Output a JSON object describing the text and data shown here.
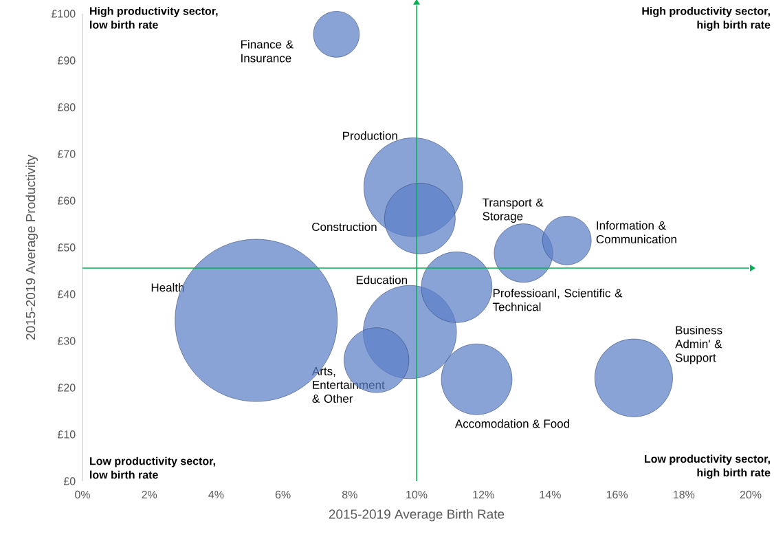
{
  "chart_data": {
    "type": "bubble",
    "xlabel": "2015-2019 Average Birth Rate",
    "ylabel": "2015-2019 Average  Productivity",
    "xlim": [
      0,
      20
    ],
    "ylim": [
      0,
      100
    ],
    "xticks": [
      {
        "value": 0,
        "label": "0%"
      },
      {
        "value": 2,
        "label": "2%"
      },
      {
        "value": 4,
        "label": "4%"
      },
      {
        "value": 6,
        "label": "6%"
      },
      {
        "value": 8,
        "label": "8%"
      },
      {
        "value": 10,
        "label": "10%"
      },
      {
        "value": 12,
        "label": "12%"
      },
      {
        "value": 14,
        "label": "14%"
      },
      {
        "value": 16,
        "label": "16%"
      },
      {
        "value": 18,
        "label": "18%"
      },
      {
        "value": 20,
        "label": "20%"
      }
    ],
    "yticks": [
      {
        "value": 0,
        "label": "£0"
      },
      {
        "value": 10,
        "label": "£10"
      },
      {
        "value": 20,
        "label": "£20"
      },
      {
        "value": 30,
        "label": "£30"
      },
      {
        "value": 40,
        "label": "£40"
      },
      {
        "value": 50,
        "label": "£50"
      },
      {
        "value": 60,
        "label": "£60"
      },
      {
        "value": 70,
        "label": "£70"
      },
      {
        "value": 80,
        "label": "£80"
      },
      {
        "value": 90,
        "label": "£90"
      },
      {
        "value": 100,
        "label": "£100"
      }
    ],
    "series": [
      {
        "name": "Finance & Insurance",
        "color": "#5b7fc7",
        "x": [
          7.6
        ],
        "values": [
          95.6
        ],
        "sizes": [
          0.08
        ]
      },
      {
        "name": "Production",
        "color": "#5b7fc7",
        "x": [
          9.9
        ],
        "values": [
          62.9
        ],
        "sizes": [
          0.37
        ]
      },
      {
        "name": "Construction",
        "color": "#5b7fc7",
        "x": [
          10.1
        ],
        "values": [
          56.2
        ],
        "sizes": [
          0.19
        ]
      },
      {
        "name": "Transport & Storage",
        "color": "#5b7fc7",
        "x": [
          13.2
        ],
        "values": [
          48.8
        ],
        "sizes": [
          0.13
        ]
      },
      {
        "name": "Information & Communication",
        "color": "#5b7fc7",
        "x": [
          14.5
        ],
        "values": [
          51.5
        ],
        "sizes": [
          0.09
        ]
      },
      {
        "name": "Health",
        "color": "#5b7fc7",
        "x": [
          5.2
        ],
        "values": [
          34.4
        ],
        "sizes": [
          1
        ]
      },
      {
        "name": "Education",
        "color": "#5b7fc7",
        "x": [
          9.8
        ],
        "values": [
          31.9
        ],
        "sizes": [
          0.33
        ]
      },
      {
        "name": "Professioanl, Scientific & Technical",
        "color": "#5b7fc7",
        "x": [
          11.2
        ],
        "values": [
          41.5
        ],
        "sizes": [
          0.19
        ]
      },
      {
        "name": "Arts, Entertainment & Other",
        "color": "#5b7fc7",
        "x": [
          8.8
        ],
        "values": [
          25.9
        ],
        "sizes": [
          0.16
        ]
      },
      {
        "name": "Accomodation & Food",
        "color": "#5b7fc7",
        "x": [
          11.8
        ],
        "values": [
          21.8
        ],
        "sizes": [
          0.19
        ]
      },
      {
        "name": "Business Admin' & Support",
        "color": "#5b7fc7",
        "x": [
          16.5
        ],
        "values": [
          22.1
        ],
        "sizes": [
          0.23
        ]
      }
    ],
    "ref_lines": [
      {
        "axis": "x",
        "value": 10,
        "color": "#00b050"
      },
      {
        "axis": "y",
        "value": 45.6,
        "color": "#00b050"
      }
    ],
    "annotations": [
      "High productivity sector, low birth rate",
      "High productivity sector, high birth rate",
      "Low productivity sector, low birth rate",
      "Low productivity sector, high birth rate"
    ]
  }
}
